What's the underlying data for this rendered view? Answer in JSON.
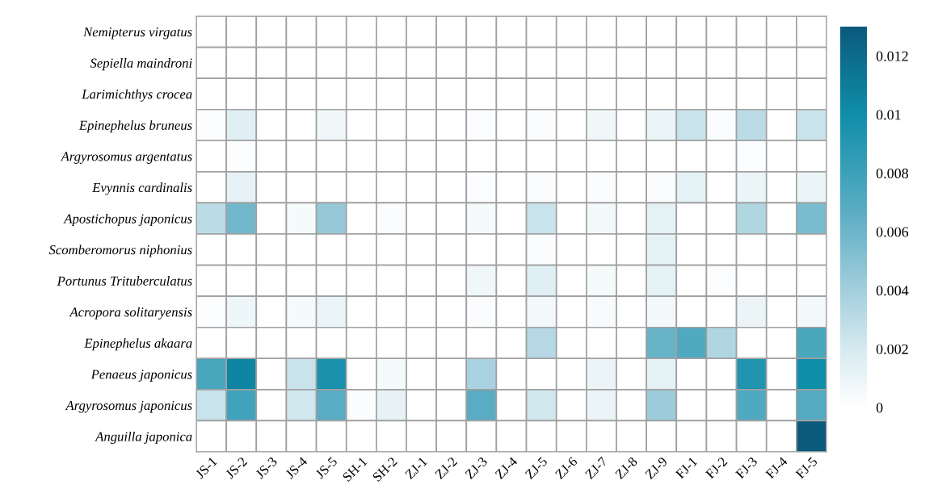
{
  "chart_data": {
    "type": "heatmap",
    "categories": [
      "JS-1",
      "JS-2",
      "JS-3",
      "JS-4",
      "JS-5",
      "SH-1",
      "SH-2",
      "ZJ-1",
      "ZJ-2",
      "ZJ-3",
      "ZJ-4",
      "ZJ-5",
      "ZJ-6",
      "ZJ-7",
      "ZJ-8",
      "ZJ-9",
      "FJ-1",
      "FJ-2",
      "FJ-3",
      "FJ-4",
      "FJ-5"
    ],
    "y_categories": [
      "Nemipterus virgatus",
      "Sepiella maindroni",
      "Larimichthys crocea",
      "Epinephelus bruneus",
      "Argyrosomus argentatus",
      "Evynnis cardinalis",
      "Apostichopus japonicus",
      "Scomberomorus niphonius",
      "Portunus Trituberculatus",
      "Acropora solitaryensis",
      "Epinephelus akaara",
      "Penaeus japonicus",
      "Argyrosomus japonicus",
      "Anguilla japonica"
    ],
    "cells": [
      [
        0,
        0,
        0,
        0,
        0,
        0,
        0,
        0,
        0,
        0,
        0,
        0,
        0,
        0,
        0,
        0,
        0,
        0,
        0,
        0,
        0
      ],
      [
        0,
        0,
        0,
        0,
        0,
        0,
        0,
        0,
        0,
        0,
        0,
        0,
        0,
        0,
        0,
        0,
        0,
        0,
        0,
        0,
        0
      ],
      [
        0,
        0,
        0,
        0,
        0,
        0,
        0,
        0,
        0,
        0,
        0,
        0,
        0,
        0,
        0,
        0,
        0,
        0,
        0,
        0,
        0
      ],
      [
        0.0002,
        0.0015,
        0,
        0,
        0.0008,
        0,
        0,
        0,
        0,
        0.0002,
        0,
        0.0003,
        0,
        0.0008,
        0,
        0.001,
        0.0025,
        0.0003,
        0.003,
        0,
        0.0025
      ],
      [
        0,
        0.0002,
        0,
        0,
        0,
        0,
        0,
        0,
        0,
        0,
        0,
        0,
        0,
        0,
        0,
        0,
        0,
        0,
        0.0002,
        0,
        0
      ],
      [
        0,
        0.0012,
        0,
        0,
        0,
        0,
        0,
        0,
        0,
        0.0002,
        0,
        0.0003,
        0,
        0.0003,
        0,
        0.0003,
        0.0013,
        0,
        0.001,
        0,
        0.001
      ],
      [
        0.003,
        0.0058,
        0,
        0.0005,
        0.0045,
        0,
        0.0003,
        0,
        0,
        0.0005,
        0,
        0.0025,
        0,
        0.0006,
        0,
        0.0013,
        0,
        0,
        0.0035,
        0,
        0.0055
      ],
      [
        0,
        0,
        0,
        0,
        0,
        0,
        0,
        0,
        0,
        0,
        0,
        0.0003,
        0,
        0,
        0,
        0.0013,
        0,
        0,
        0,
        0,
        0
      ],
      [
        0,
        0,
        0,
        0,
        0,
        0,
        0,
        0,
        0,
        0.0008,
        0,
        0.0015,
        0,
        0.0005,
        0,
        0.0013,
        0,
        0.0002,
        0,
        0,
        0
      ],
      [
        0.0002,
        0.0009,
        0,
        0.0005,
        0.001,
        0,
        0,
        0,
        0,
        0.0003,
        0,
        0.0006,
        0,
        0.0004,
        0,
        0.0006,
        0,
        0,
        0.001,
        0,
        0.0006
      ],
      [
        0,
        0,
        0,
        0,
        0,
        0,
        0,
        0,
        0,
        0,
        0,
        0.0033,
        0,
        0,
        0,
        0.0062,
        0.0072,
        0.0035,
        0,
        0,
        0.0075
      ],
      [
        0.0075,
        0.0105,
        0,
        0.0025,
        0.0095,
        0,
        0.0005,
        0,
        0,
        0.0038,
        0,
        0,
        0,
        0.001,
        0,
        0.0013,
        0,
        0,
        0.0092,
        0,
        0.01
      ],
      [
        0.0025,
        0.0078,
        0,
        0.0022,
        0.0068,
        0.0003,
        0.0012,
        0,
        0,
        0.0068,
        0,
        0.0022,
        0,
        0.001,
        0,
        0.0042,
        0,
        0,
        0.0072,
        0,
        0.007
      ],
      [
        0,
        0,
        0,
        0,
        0,
        0,
        0,
        0,
        0,
        0,
        0,
        0,
        0,
        0,
        0,
        0,
        0,
        0,
        0,
        0,
        0.013
      ]
    ],
    "clim": [
      0,
      0.013
    ],
    "cticks": [
      0,
      {
        "value": 0.002,
        "label": "0.002"
      },
      {
        "value": 0.004,
        "label": "0.004"
      },
      {
        "value": 0.006,
        "label": "0.006"
      },
      {
        "value": 0.008,
        "label": "0.008"
      },
      {
        "value": 0.01,
        "label": "0.01"
      },
      {
        "value": 0.012,
        "label": "0.012"
      }
    ]
  }
}
